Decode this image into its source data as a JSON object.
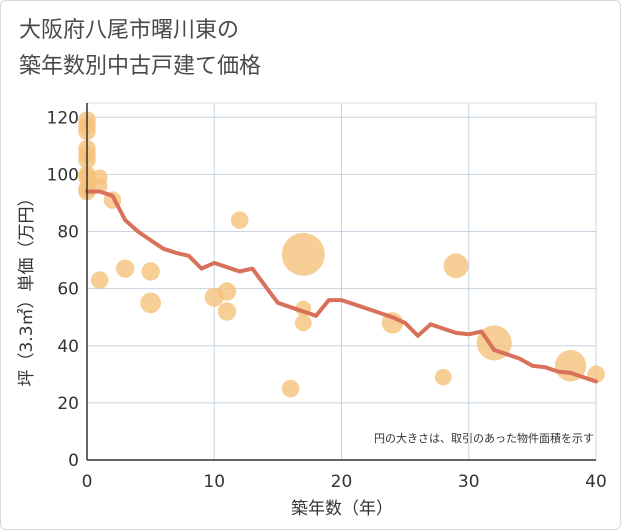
{
  "title_line1": "大阪府八尾市曙川東の",
  "title_line2": "築年数別中古戸建て価格",
  "chart_data": {
    "type": "scatter",
    "xlabel": "築年数（年）",
    "ylabel": "坪（3.3㎡）単価（万円）",
    "xlim": [
      0,
      40
    ],
    "ylim": [
      0,
      125
    ],
    "xticks": [
      0,
      10,
      20,
      30,
      40
    ],
    "yticks": [
      0,
      20,
      40,
      60,
      80,
      100,
      120
    ],
    "annotation": "円の大きさは、取引のあった物件面積を示す",
    "bubble_color": "#f5c27a",
    "line_color": "#d9705a",
    "points": [
      {
        "x": 0,
        "y": 119,
        "size": 1
      },
      {
        "x": 0,
        "y": 117,
        "size": 1
      },
      {
        "x": 0,
        "y": 115,
        "size": 1
      },
      {
        "x": 0,
        "y": 109,
        "size": 1
      },
      {
        "x": 0,
        "y": 107,
        "size": 1
      },
      {
        "x": 0,
        "y": 105,
        "size": 1
      },
      {
        "x": 0,
        "y": 100,
        "size": 1
      },
      {
        "x": 0,
        "y": 99,
        "size": 1
      },
      {
        "x": 0,
        "y": 95,
        "size": 1
      },
      {
        "x": 0,
        "y": 94,
        "size": 1
      },
      {
        "x": 1,
        "y": 99,
        "size": 0.8
      },
      {
        "x": 1,
        "y": 96,
        "size": 0.8
      },
      {
        "x": 1,
        "y": 63,
        "size": 1
      },
      {
        "x": 2,
        "y": 91,
        "size": 1
      },
      {
        "x": 3,
        "y": 67,
        "size": 1.1
      },
      {
        "x": 5,
        "y": 66,
        "size": 1.1
      },
      {
        "x": 5,
        "y": 55,
        "size": 1.4
      },
      {
        "x": 10,
        "y": 57,
        "size": 1.2
      },
      {
        "x": 11,
        "y": 59,
        "size": 1.1
      },
      {
        "x": 11,
        "y": 52,
        "size": 1.1
      },
      {
        "x": 12,
        "y": 84,
        "size": 1
      },
      {
        "x": 16,
        "y": 25,
        "size": 1
      },
      {
        "x": 17,
        "y": 72,
        "size": 6
      },
      {
        "x": 17,
        "y": 53,
        "size": 0.8
      },
      {
        "x": 17,
        "y": 48,
        "size": 0.9
      },
      {
        "x": 24,
        "y": 48,
        "size": 1.5
      },
      {
        "x": 28,
        "y": 29,
        "size": 0.9
      },
      {
        "x": 29,
        "y": 68,
        "size": 2
      },
      {
        "x": 32,
        "y": 41,
        "size": 4
      },
      {
        "x": 38,
        "y": 33,
        "size": 3.2
      },
      {
        "x": 40,
        "y": 30,
        "size": 1
      }
    ],
    "trend": {
      "x": [
        0,
        1,
        2,
        3,
        4,
        5,
        6,
        7,
        8,
        9,
        10,
        11,
        12,
        13,
        14,
        15,
        16,
        17,
        18,
        19,
        20,
        21,
        22,
        23,
        24,
        25,
        26,
        27,
        28,
        29,
        30,
        31,
        32,
        33,
        34,
        35,
        36,
        37,
        38,
        39,
        40
      ],
      "y": [
        94,
        94,
        92.5,
        84,
        80,
        77,
        74,
        72.5,
        71.5,
        67,
        69,
        67.5,
        66,
        67,
        61,
        55,
        53.5,
        52,
        50.5,
        56,
        56,
        54.5,
        53,
        51.5,
        50,
        48,
        43.5,
        47.5,
        46,
        44.5,
        44,
        45,
        38.5,
        37,
        35.5,
        33,
        32.5,
        31,
        30.5,
        29,
        27.5
      ]
    }
  }
}
